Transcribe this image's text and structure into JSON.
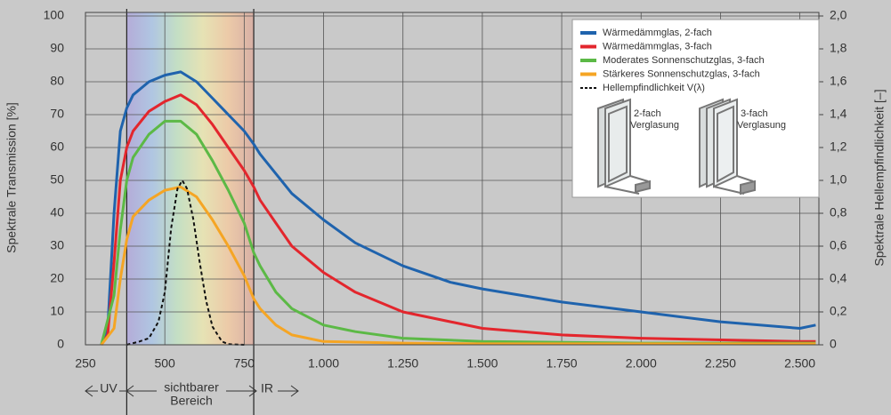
{
  "chart_data": {
    "type": "line",
    "y_label": "Spektrale Transmission [%]",
    "y2_label": "Spektrale Hellempfindlichkeit [–]",
    "xlim": [
      250,
      2560
    ],
    "xticks": [
      250,
      500,
      750,
      {
        "value": 1000,
        "label": "1.000"
      },
      {
        "value": 1250,
        "label": "1.250"
      },
      {
        "value": 1500,
        "label": "1.500"
      },
      {
        "value": 1750,
        "label": "1.750"
      },
      {
        "value": 2000,
        "label": "2.000"
      },
      {
        "value": 2250,
        "label": "2.250"
      },
      {
        "value": 2500,
        "label": "2.500"
      }
    ],
    "ylim": [
      0,
      100
    ],
    "yticks": [
      0,
      10,
      20,
      30,
      40,
      50,
      60,
      70,
      80,
      90,
      100
    ],
    "y2lim": [
      0,
      2
    ],
    "y2ticks": [
      0,
      {
        "value": 0.2,
        "label": "0,2"
      },
      {
        "value": 0.4,
        "label": "0,4"
      },
      {
        "value": 0.6,
        "label": "0,6"
      },
      {
        "value": 0.8,
        "label": "0,8"
      },
      {
        "value": 1,
        "label": "1,0"
      },
      {
        "value": 1.2,
        "label": "1,2"
      },
      {
        "value": 1.4,
        "label": "1,4"
      },
      {
        "value": 1.6,
        "label": "1,6"
      },
      {
        "value": 1.8,
        "label": "1,8"
      },
      {
        "value": 2,
        "label": "2,0"
      }
    ],
    "grid": true,
    "legend": "upper right",
    "visible_band": [
      380,
      780
    ],
    "annotations": [
      "UV",
      "sichtbarer",
      "Bereich",
      "IR",
      "2-fach",
      "Verglasung",
      "3-fach",
      "Verglasung"
    ],
    "series": [
      {
        "name": "Wärmedämmglas, 2-fach",
        "color": "#1f63ad",
        "x": [
          300,
          320,
          340,
          360,
          380,
          400,
          450,
          500,
          550,
          600,
          650,
          700,
          750,
          780,
          800,
          850,
          900,
          1000,
          1100,
          1250,
          1400,
          1500,
          1750,
          2000,
          2250,
          2500,
          2550
        ],
        "values": [
          0,
          5,
          40,
          65,
          72,
          76,
          80,
          82,
          83,
          80,
          75,
          70,
          65,
          61,
          58,
          52,
          46,
          38,
          31,
          24,
          19,
          17,
          13,
          10,
          7,
          5,
          6
        ]
      },
      {
        "name": "Wärmedämmglas, 3-fach",
        "color": "#e3262d",
        "x": [
          300,
          320,
          340,
          360,
          380,
          400,
          450,
          500,
          550,
          600,
          650,
          700,
          750,
          780,
          800,
          850,
          900,
          950,
          1000,
          1100,
          1250,
          1500,
          1750,
          2000,
          2500,
          2550
        ],
        "values": [
          0,
          3,
          25,
          50,
          60,
          65,
          71,
          74,
          76,
          73,
          67,
          60,
          53,
          48,
          44,
          37,
          30,
          26,
          22,
          16,
          10,
          5,
          3,
          2,
          1,
          1
        ]
      },
      {
        "name": "Moderates Sonnenschutzglas, 3-fach",
        "color": "#5cb946",
        "x": [
          300,
          340,
          360,
          380,
          400,
          450,
          500,
          550,
          600,
          650,
          700,
          750,
          780,
          800,
          850,
          900,
          1000,
          1100,
          1250,
          1500,
          2000,
          2550
        ],
        "values": [
          0,
          15,
          35,
          50,
          57,
          64,
          68,
          68,
          64,
          56,
          47,
          37,
          28,
          24,
          16,
          11,
          6,
          4,
          2,
          1,
          0.5,
          0.5
        ]
      },
      {
        "name": "Stärkeres Sonnenschutzglas, 3-fach",
        "color": "#f5a524",
        "x": [
          300,
          340,
          360,
          380,
          400,
          450,
          500,
          550,
          600,
          650,
          700,
          750,
          780,
          800,
          850,
          900,
          1000,
          1250,
          1500,
          2550
        ],
        "values": [
          0,
          5,
          20,
          32,
          39,
          44,
          47,
          48,
          45,
          38,
          30,
          21,
          14,
          11,
          6,
          3,
          1,
          0.5,
          0.3,
          0.3
        ]
      },
      {
        "name": "Hellempfindlichkeit V(λ)",
        "color": "#111111",
        "style": "dashed",
        "axis": "y2",
        "x": [
          380,
          420,
          450,
          480,
          500,
          520,
          540,
          555,
          570,
          590,
          610,
          630,
          650,
          680,
          700,
          750
        ],
        "values": [
          0,
          0.02,
          0.04,
          0.14,
          0.32,
          0.71,
          0.95,
          1,
          0.95,
          0.76,
          0.5,
          0.27,
          0.11,
          0.02,
          0.004,
          0
        ]
      }
    ]
  }
}
